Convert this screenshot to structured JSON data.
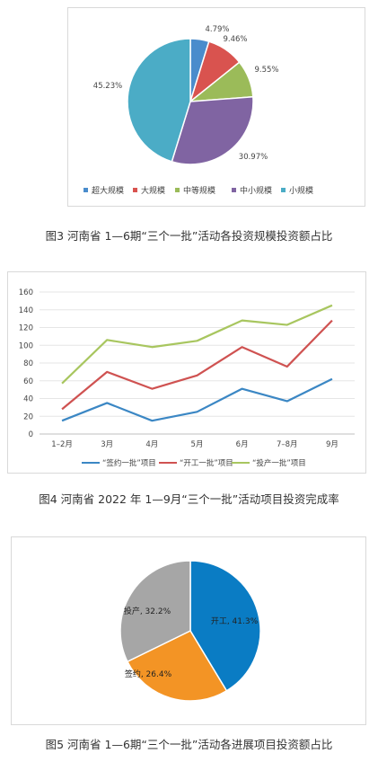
{
  "chart_data": [
    {
      "type": "pie",
      "categories": [
        "超大规模",
        "大规模",
        "中等规模",
        "中小规模",
        "小规模"
      ],
      "values": [
        4.79,
        9.46,
        9.55,
        30.97,
        45.23
      ],
      "labels": [
        "4.79%",
        "9.46%",
        "9.55%",
        "30.97%",
        "45.23%"
      ],
      "colors": [
        "#4a8ccc",
        "#d9534f",
        "#9bbb59",
        "#8064a2",
        "#4bacc6"
      ],
      "legend": "bottom"
    },
    {
      "type": "line",
      "categories": [
        "1–2月",
        "3月",
        "4月",
        "5月",
        "6月",
        "7–8月",
        "9月"
      ],
      "series": [
        {
          "name": "“签约一批”项目",
          "color": "#3b87c4",
          "values": [
            15,
            35,
            15,
            25,
            51,
            37,
            62
          ]
        },
        {
          "name": "“开工一批”项目",
          "color": "#cf5251",
          "values": [
            28,
            70,
            51,
            66,
            98,
            76,
            128
          ]
        },
        {
          "name": "“投产一批”项目",
          "color": "#a8c65f",
          "values": [
            57,
            106,
            98,
            105,
            128,
            123,
            145
          ]
        }
      ],
      "yticks": [
        "0",
        "20",
        "40",
        "60",
        "80",
        "100",
        "120",
        "140",
        "160"
      ],
      "ylim": [
        0,
        160
      ],
      "grid": true,
      "legend": "bottom"
    },
    {
      "type": "pie",
      "categories": [
        "开工",
        "签约",
        "投产"
      ],
      "values": [
        41.3,
        26.4,
        32.2
      ],
      "labels": [
        "开工, 41.3%",
        "签约, 26.4%",
        "投产, 32.2%"
      ],
      "colors": [
        "#0a7cc4",
        "#f39425",
        "#a6a6a6"
      ]
    }
  ],
  "captions": {
    "fig3": "图3  河南省 1—6期“三个一批”活动各投资规模投资额占比",
    "fig4": "图4  河南省 2022 年 1—9月“三个一批”活动项目投资完成率",
    "fig5": "图5  河南省 1—6期“三个一批”活动各进展项目投资额占比"
  }
}
